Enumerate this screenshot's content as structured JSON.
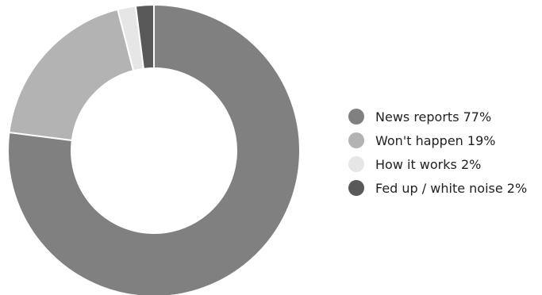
{
  "chart_data": {
    "type": "pie",
    "style": "donut",
    "legend_position": "right",
    "slices": [
      {
        "label": "News reports",
        "value": 77,
        "display": "News reports 77%",
        "color": "#808080"
      },
      {
        "label": "Won't happen",
        "value": 19,
        "display": "Won't happen 19%",
        "color": "#b3b3b3"
      },
      {
        "label": "How it works",
        "value": 2,
        "display": "How it works 2%",
        "color": "#e6e6e6"
      },
      {
        "label": "Fed up / white noise",
        "value": 2,
        "display": "Fed up / white noise 2%",
        "color": "#595959"
      }
    ]
  }
}
